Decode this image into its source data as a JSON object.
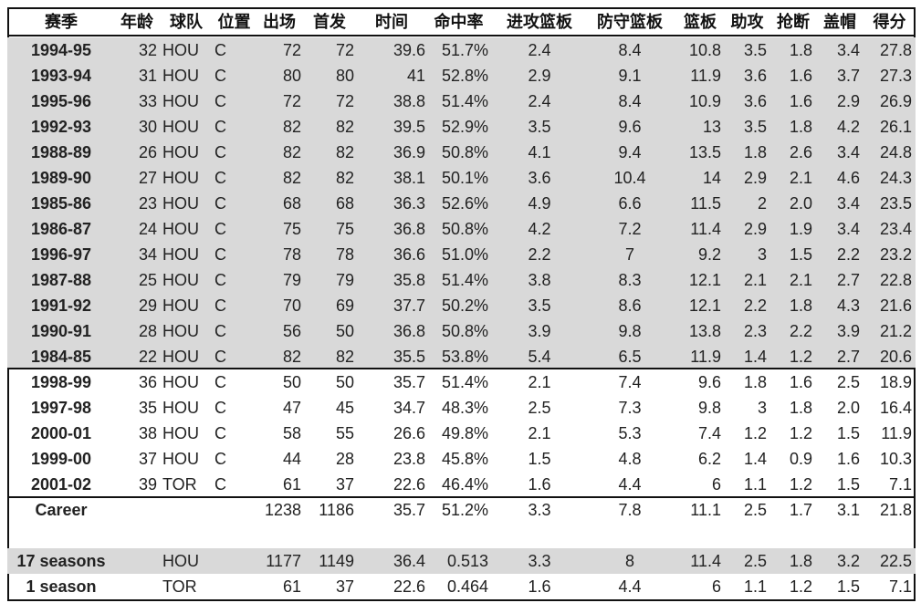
{
  "table": {
    "header": [
      "赛季",
      "年龄",
      "球队",
      "位置",
      "出场",
      "首发",
      "时间",
      "命中率",
      "进攻篮板",
      "防守篮板",
      "篮板",
      "助攻",
      "抢断",
      "盖帽",
      "得分"
    ],
    "rows": [
      [
        "1994-95",
        "32",
        "HOU",
        "C",
        "72",
        "72",
        "39.6",
        "51.7%",
        "2.4",
        "8.4",
        "10.8",
        "3.5",
        "1.8",
        "3.4",
        "27.8"
      ],
      [
        "1993-94",
        "31",
        "HOU",
        "C",
        "80",
        "80",
        "41",
        "52.8%",
        "2.9",
        "9.1",
        "11.9",
        "3.6",
        "1.6",
        "3.7",
        "27.3"
      ],
      [
        "1995-96",
        "33",
        "HOU",
        "C",
        "72",
        "72",
        "38.8",
        "51.4%",
        "2.4",
        "8.4",
        "10.9",
        "3.6",
        "1.6",
        "2.9",
        "26.9"
      ],
      [
        "1992-93",
        "30",
        "HOU",
        "C",
        "82",
        "82",
        "39.5",
        "52.9%",
        "3.5",
        "9.6",
        "13",
        "3.5",
        "1.8",
        "4.2",
        "26.1"
      ],
      [
        "1988-89",
        "26",
        "HOU",
        "C",
        "82",
        "82",
        "36.9",
        "50.8%",
        "4.1",
        "9.4",
        "13.5",
        "1.8",
        "2.6",
        "3.4",
        "24.8"
      ],
      [
        "1989-90",
        "27",
        "HOU",
        "C",
        "82",
        "82",
        "38.1",
        "50.1%",
        "3.6",
        "10.4",
        "14",
        "2.9",
        "2.1",
        "4.6",
        "24.3"
      ],
      [
        "1985-86",
        "23",
        "HOU",
        "C",
        "68",
        "68",
        "36.3",
        "52.6%",
        "4.9",
        "6.6",
        "11.5",
        "2",
        "2.0",
        "3.4",
        "23.5"
      ],
      [
        "1986-87",
        "24",
        "HOU",
        "C",
        "75",
        "75",
        "36.8",
        "50.8%",
        "4.2",
        "7.2",
        "11.4",
        "2.9",
        "1.9",
        "3.4",
        "23.4"
      ],
      [
        "1996-97",
        "34",
        "HOU",
        "C",
        "78",
        "78",
        "36.6",
        "51.0%",
        "2.2",
        "7",
        "9.2",
        "3",
        "1.5",
        "2.2",
        "23.2"
      ],
      [
        "1987-88",
        "25",
        "HOU",
        "C",
        "79",
        "79",
        "35.8",
        "51.4%",
        "3.8",
        "8.3",
        "12.1",
        "2.1",
        "2.1",
        "2.7",
        "22.8"
      ],
      [
        "1991-92",
        "29",
        "HOU",
        "C",
        "70",
        "69",
        "37.7",
        "50.2%",
        "3.5",
        "8.6",
        "12.1",
        "2.2",
        "1.8",
        "4.3",
        "21.6"
      ],
      [
        "1990-91",
        "28",
        "HOU",
        "C",
        "56",
        "50",
        "36.8",
        "50.8%",
        "3.9",
        "9.8",
        "13.8",
        "2.3",
        "2.2",
        "3.9",
        "21.2"
      ],
      [
        "1984-85",
        "22",
        "HOU",
        "C",
        "82",
        "82",
        "35.5",
        "53.8%",
        "5.4",
        "6.5",
        "11.9",
        "1.4",
        "1.2",
        "2.7",
        "20.6"
      ],
      [
        "1998-99",
        "36",
        "HOU",
        "C",
        "50",
        "50",
        "35.7",
        "51.4%",
        "2.1",
        "7.4",
        "9.6",
        "1.8",
        "1.6",
        "2.5",
        "18.9"
      ],
      [
        "1997-98",
        "35",
        "HOU",
        "C",
        "47",
        "45",
        "34.7",
        "48.3%",
        "2.5",
        "7.3",
        "9.8",
        "3",
        "1.8",
        "2.0",
        "16.4"
      ],
      [
        "2000-01",
        "38",
        "HOU",
        "C",
        "58",
        "55",
        "26.6",
        "49.8%",
        "2.1",
        "5.3",
        "7.4",
        "1.2",
        "1.2",
        "1.5",
        "11.9"
      ],
      [
        "1999-00",
        "37",
        "HOU",
        "C",
        "44",
        "28",
        "23.8",
        "45.8%",
        "1.5",
        "4.8",
        "6.2",
        "1.4",
        "0.9",
        "1.6",
        "10.3"
      ],
      [
        "2001-02",
        "39",
        "TOR",
        "C",
        "61",
        "37",
        "22.6",
        "46.4%",
        "1.6",
        "4.4",
        "6",
        "1.1",
        "1.2",
        "1.5",
        "7.1"
      ],
      [
        "Career",
        null,
        null,
        null,
        "1238",
        "1186",
        "35.7",
        "51.2%",
        "3.3",
        "7.8",
        "11.1",
        "2.5",
        "1.7",
        "3.1",
        "21.8"
      ],
      [
        "17 seasons",
        null,
        "HOU",
        null,
        "1177",
        "1149",
        "36.4",
        "0.513",
        "3.3",
        "8",
        "11.4",
        "2.5",
        "1.8",
        "3.2",
        "22.5"
      ],
      [
        "1 season",
        null,
        "TOR",
        null,
        "61",
        "37",
        "22.6",
        "0.464",
        "1.6",
        "4.4",
        "6",
        "1.1",
        "1.2",
        "1.5",
        "7.1"
      ]
    ]
  }
}
